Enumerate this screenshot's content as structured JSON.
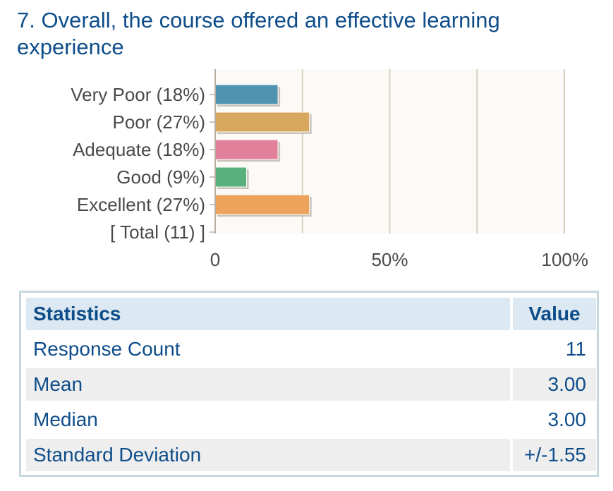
{
  "question": {
    "title": "7. Overall, the course offered an effective learning experience"
  },
  "chart_data": {
    "type": "bar",
    "orientation": "horizontal",
    "categories": [
      "Very Poor (18%)",
      "Poor (27%)",
      "Adequate (18%)",
      "Good (9%)",
      "Excellent (27%)",
      "[ Total (11) ]"
    ],
    "values": [
      18,
      27,
      18,
      9,
      27,
      null
    ],
    "colors": [
      "#4f93b1",
      "#d6a75d",
      "#e0809b",
      "#58b07a",
      "#eea35c"
    ],
    "xlim": [
      0,
      100
    ],
    "x_ticks": [
      {
        "value": 0,
        "label": "0"
      },
      {
        "value": 50,
        "label": "50%"
      },
      {
        "value": 100,
        "label": "100%"
      }
    ],
    "gridlines": [
      25,
      50,
      75,
      100
    ],
    "plot_background": "#fbfaf6",
    "grid_color": "#d8cfc3"
  },
  "statistics": {
    "header": {
      "label": "Statistics",
      "value": "Value"
    },
    "rows": [
      {
        "label": "Response Count",
        "value": "11"
      },
      {
        "label": "Mean",
        "value": "3.00"
      },
      {
        "label": "Median",
        "value": "3.00"
      },
      {
        "label": "Standard Deviation",
        "value": "+/-1.55"
      }
    ]
  }
}
